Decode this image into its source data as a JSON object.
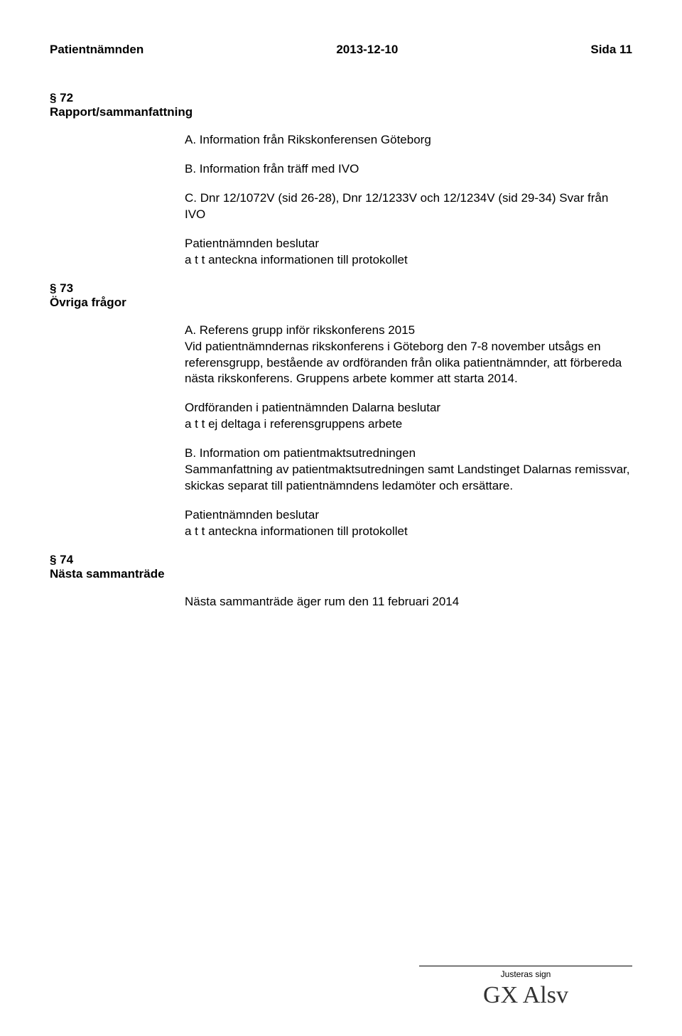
{
  "header": {
    "left": "Patientnämnden",
    "center": "2013-12-10",
    "right": "Sida 11"
  },
  "sections": {
    "s72": {
      "num": "§ 72",
      "title": "Rapport/sammanfattning",
      "itemA": "A. Information från Rikskonferensen Göteborg",
      "itemB": "B. Information från träff med IVO",
      "itemC": "C. Dnr 12/1072V (sid 26-28), Dnr 12/1233V och 12/1234V (sid 29-34) Svar från IVO",
      "decision": "Patientnämnden beslutar\na t t anteckna informationen till protokollet"
    },
    "s73": {
      "num": "§ 73",
      "title": "Övriga frågor",
      "paraA": "A. Referens grupp inför rikskonferens 2015\nVid patientnämndernas rikskonferens i Göteborg den 7-8 november utsågs en referensgrupp, bestående av ordföranden från olika patientnämnder, att förbereda nästa rikskonferens. Gruppens arbete kommer att starta 2014.",
      "paraChair": "Ordföranden i patientnämnden Dalarna beslutar\na t t ej deltaga i referensgruppens arbete",
      "paraB": "B. Information om patientmaktsutredningen\nSammanfattning av patientmaktsutredningen samt Landstinget Dalarnas remissvar, skickas separat till patientnämndens ledamöter och ersättare.",
      "decision": "Patientnämnden beslutar\na t t anteckna informationen till protokollet"
    },
    "s74": {
      "num": "§ 74",
      "title": "Nästa sammanträde",
      "body": "Nästa sammanträde äger rum den 11 februari 2014"
    }
  },
  "footer": {
    "label": "Justeras sign",
    "signature": "GX  Alsv"
  }
}
